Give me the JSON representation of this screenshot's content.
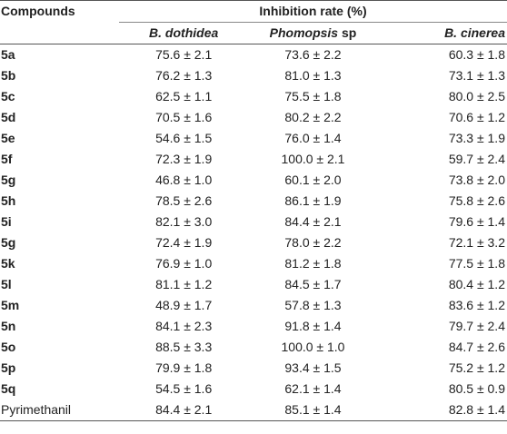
{
  "header": {
    "compounds": "Compounds",
    "inhibition": "Inhibition rate (%)",
    "col1_italic": "B. dothidea",
    "col2_italic": "Phomopsis",
    "col2_plain": " sp",
    "col3_italic": "B. cinerea"
  },
  "rows": [
    {
      "name": "5a",
      "bold": true,
      "v1": "75.6 ± 2.1",
      "v2": "73.6 ± 2.2",
      "v3": "60.3 ± 1.8"
    },
    {
      "name": "5b",
      "bold": true,
      "v1": "76.2 ± 1.3",
      "v2": "81.0 ± 1.3",
      "v3": "73.1 ± 1.3"
    },
    {
      "name": "5c",
      "bold": true,
      "v1": "62.5 ± 1.1",
      "v2": "75.5 ± 1.8",
      "v3": "80.0 ± 2.5"
    },
    {
      "name": "5d",
      "bold": true,
      "v1": "70.5 ± 1.6",
      "v2": "80.2 ± 2.2",
      "v3": "70.6 ± 1.2"
    },
    {
      "name": "5e",
      "bold": true,
      "v1": "54.6 ± 1.5",
      "v2": "76.0 ± 1.4",
      "v3": "73.3 ± 1.9"
    },
    {
      "name": "5f",
      "bold": true,
      "v1": "72.3 ± 1.9",
      "v2": "100.0 ± 2.1",
      "v3": "59.7 ± 2.4"
    },
    {
      "name": "5g",
      "bold": true,
      "v1": "46.8 ± 1.0",
      "v2": "60.1 ± 2.0",
      "v3": "73.8 ± 2.0"
    },
    {
      "name": "5h",
      "bold": true,
      "v1": "78.5 ± 2.6",
      "v2": "86.1 ± 1.9",
      "v3": "75.8 ± 2.6"
    },
    {
      "name": "5i",
      "bold": true,
      "v1": "82.1 ± 3.0",
      "v2": "84.4 ± 2.1",
      "v3": "79.6 ± 1.4"
    },
    {
      "name": "5g",
      "bold": true,
      "v1": "72.4 ± 1.9",
      "v2": "78.0 ± 2.2",
      "v3": "72.1 ± 3.2"
    },
    {
      "name": "5k",
      "bold": true,
      "v1": "76.9 ± 1.0",
      "v2": "81.2 ± 1.8",
      "v3": "77.5 ± 1.8"
    },
    {
      "name": "5l",
      "bold": true,
      "v1": "81.1 ± 1.2",
      "v2": "84.5 ± 1.7",
      "v3": "80.4 ± 1.2"
    },
    {
      "name": "5m",
      "bold": true,
      "v1": "48.9 ± 1.7",
      "v2": "57.8 ± 1.3",
      "v3": "83.6 ± 1.2"
    },
    {
      "name": "5n",
      "bold": true,
      "v1": "84.1 ± 2.3",
      "v2": "91.8 ± 1.4",
      "v3": "79.7 ± 2.4"
    },
    {
      "name": "5o",
      "bold": true,
      "v1": "88.5 ± 3.3",
      "v2": "100.0 ± 1.0",
      "v3": "84.7 ± 2.6"
    },
    {
      "name": "5p",
      "bold": true,
      "v1": "79.9 ± 1.8",
      "v2": "93.4 ± 1.5",
      "v3": "75.2 ± 1.2"
    },
    {
      "name": "5q",
      "bold": true,
      "v1": "54.5 ± 1.6",
      "v2": "62.1 ± 1.4",
      "v3": "80.5 ± 0.9"
    },
    {
      "name": "Pyrimethanil",
      "bold": false,
      "v1": "84.4 ± 2.1",
      "v2": "85.1 ± 1.4",
      "v3": "82.8 ± 1.4"
    }
  ]
}
